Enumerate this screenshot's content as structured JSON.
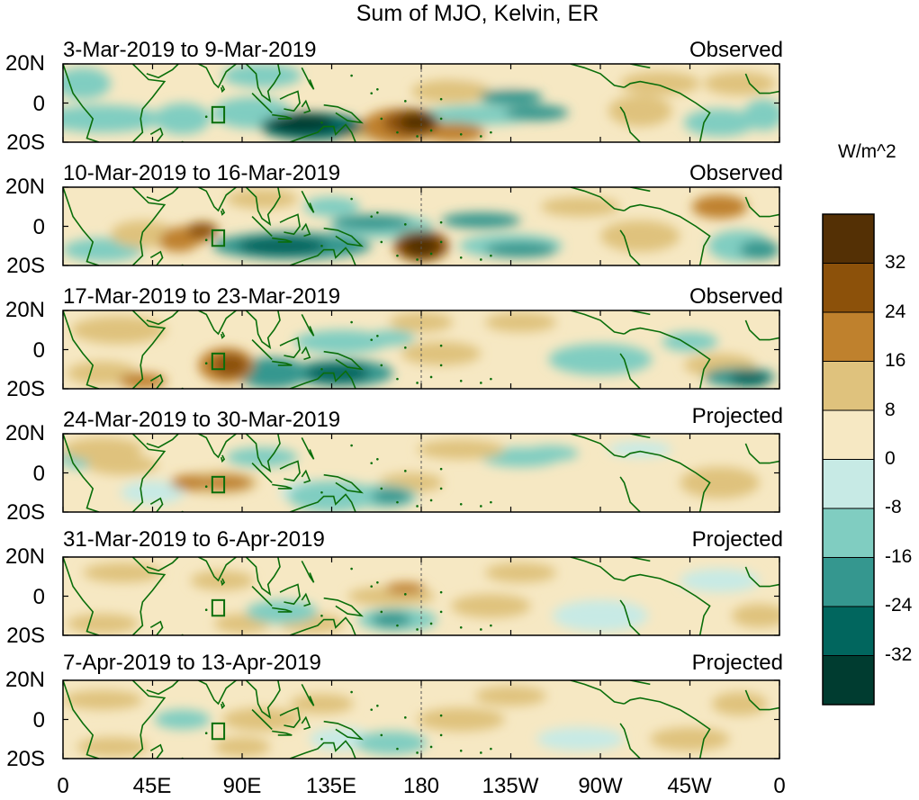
{
  "title": "Sum of MJO, Kelvin, ER",
  "panels": [
    {
      "date": "3-Mar-2019 to 9-Mar-2019",
      "status": "Observed"
    },
    {
      "date": "10-Mar-2019 to 16-Mar-2019",
      "status": "Observed"
    },
    {
      "date": "17-Mar-2019 to 23-Mar-2019",
      "status": "Observed"
    },
    {
      "date": "24-Mar-2019 to 30-Mar-2019",
      "status": "Projected"
    },
    {
      "date": "31-Mar-2019 to 6-Apr-2019",
      "status": "Projected"
    },
    {
      "date": "7-Apr-2019 to 13-Apr-2019",
      "status": "Projected"
    }
  ],
  "lat_labels": [
    "20N",
    "0",
    "20S"
  ],
  "lon_labels": [
    "0",
    "45E",
    "90E",
    "135E",
    "180",
    "135W",
    "90W",
    "45W",
    "0"
  ],
  "colorbar": {
    "unit": "W/m^2",
    "labels": [
      "32",
      "24",
      "16",
      "8",
      "0",
      "-8",
      "-16",
      "-24",
      "-32"
    ],
    "colors": [
      "#543005",
      "#8c510a",
      "#bf812d",
      "#dfc27d",
      "#f6e8c3",
      "#c7eae5",
      "#80cdc1",
      "#35978f",
      "#01665e",
      "#003c30"
    ]
  },
  "colors": {
    "coast": "#0a6e0a"
  }
}
